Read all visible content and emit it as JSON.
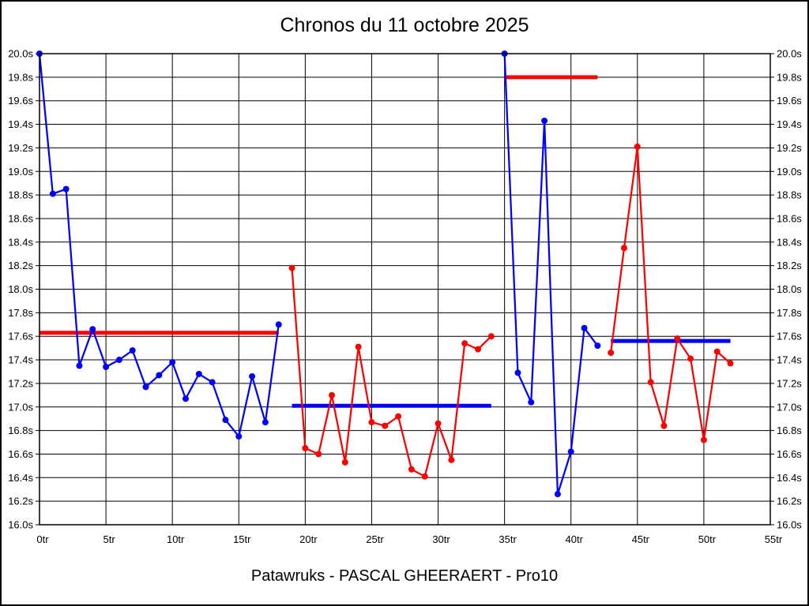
{
  "title": "Chronos du 11 octobre 2025",
  "footer": "Patawruks - PASCAL GHEERAERT - Pro10",
  "colors": {
    "blue_series": "#0000ff",
    "red_series": "#ff0000",
    "grid": "#000000",
    "background": "#ffffff",
    "text": "#000000"
  },
  "chart_data": {
    "type": "line",
    "title": "Chronos du 11 octobre 2025",
    "subtitle": "Patawruks - PASCAL GHEERAERT - Pro10",
    "xlabel": "",
    "ylabel": "",
    "x_unit": "tr",
    "y_unit": "s",
    "xlim": [
      0,
      55
    ],
    "ylim": [
      16.0,
      20.0
    ],
    "grid": true,
    "legend": "none",
    "x_ticks": [
      {
        "value": 0,
        "label": "0tr"
      },
      {
        "value": 5,
        "label": "5tr"
      },
      {
        "value": 10,
        "label": "10tr"
      },
      {
        "value": 15,
        "label": "15tr"
      },
      {
        "value": 20,
        "label": "20tr"
      },
      {
        "value": 25,
        "label": "25tr"
      },
      {
        "value": 30,
        "label": "30tr"
      },
      {
        "value": 35,
        "label": "35tr"
      },
      {
        "value": 40,
        "label": "40tr"
      },
      {
        "value": 45,
        "label": "45tr"
      },
      {
        "value": 50,
        "label": "50tr"
      },
      {
        "value": 55,
        "label": "55tr"
      }
    ],
    "y_ticks": [
      {
        "value": 20.0,
        "label": "20.0s"
      },
      {
        "value": 19.8,
        "label": "19.8s"
      },
      {
        "value": 19.6,
        "label": "19.6s"
      },
      {
        "value": 19.4,
        "label": "19.4s"
      },
      {
        "value": 19.2,
        "label": "19.2s"
      },
      {
        "value": 19.0,
        "label": "19.0s"
      },
      {
        "value": 18.8,
        "label": "18.8s"
      },
      {
        "value": 18.6,
        "label": "18.6s"
      },
      {
        "value": 18.4,
        "label": "18.4s"
      },
      {
        "value": 18.2,
        "label": "18.2s"
      },
      {
        "value": 18.0,
        "label": "18.0s"
      },
      {
        "value": 17.8,
        "label": "17.8s"
      },
      {
        "value": 17.6,
        "label": "17.6s"
      },
      {
        "value": 17.4,
        "label": "17.4s"
      },
      {
        "value": 17.2,
        "label": "17.2s"
      },
      {
        "value": 17.0,
        "label": "17.0s"
      },
      {
        "value": 16.8,
        "label": "16.8s"
      },
      {
        "value": 16.6,
        "label": "16.6s"
      },
      {
        "value": 16.4,
        "label": "16.4s"
      },
      {
        "value": 16.2,
        "label": "16.2s"
      },
      {
        "value": 16.0,
        "label": "16.0s"
      }
    ],
    "series": [
      {
        "name": "stint-1-blue",
        "color": "#0000ff",
        "x": [
          0,
          1,
          2,
          3,
          4,
          5,
          6,
          7,
          8,
          9,
          10,
          11,
          12,
          13,
          14,
          15,
          16,
          17,
          18
        ],
        "y": [
          20.0,
          18.81,
          18.85,
          17.35,
          17.66,
          17.34,
          17.4,
          17.48,
          17.17,
          17.27,
          17.38,
          17.07,
          17.28,
          17.21,
          16.89,
          16.75,
          17.26,
          16.87,
          17.7
        ]
      },
      {
        "name": "stint-2-red",
        "color": "#ff0000",
        "x": [
          19,
          20,
          21,
          22,
          23,
          24,
          25,
          26,
          27,
          28,
          29,
          30,
          31,
          32,
          33,
          34
        ],
        "y": [
          18.18,
          16.65,
          16.6,
          17.1,
          16.53,
          17.51,
          16.87,
          16.84,
          16.92,
          16.47,
          16.41,
          16.86,
          16.55,
          17.54,
          17.49,
          17.6
        ]
      },
      {
        "name": "stint-3-blue",
        "color": "#0000ff",
        "x": [
          35,
          36,
          37,
          38,
          39,
          40,
          41,
          42
        ],
        "y": [
          20.0,
          17.29,
          17.04,
          19.43,
          16.26,
          16.62,
          17.67,
          17.52
        ]
      },
      {
        "name": "stint-4-red",
        "color": "#ff0000",
        "x": [
          43,
          44,
          45,
          46,
          47,
          48,
          49,
          50,
          51,
          52
        ],
        "y": [
          17.46,
          18.35,
          19.21,
          17.21,
          16.84,
          17.58,
          17.41,
          16.72,
          17.47,
          17.37
        ]
      }
    ],
    "average_lines": [
      {
        "name": "average-stint-1",
        "color": "#ff0000",
        "x_start": 0,
        "x_end": 18,
        "y": 17.63
      },
      {
        "name": "average-stint-2",
        "color": "#0000ff",
        "x_start": 19,
        "x_end": 34,
        "y": 17.01
      },
      {
        "name": "average-stint-3",
        "color": "#ff0000",
        "x_start": 35,
        "x_end": 42,
        "y": 19.8
      },
      {
        "name": "average-stint-4",
        "color": "#0000ff",
        "x_start": 43,
        "x_end": 52,
        "y": 17.56
      }
    ]
  }
}
